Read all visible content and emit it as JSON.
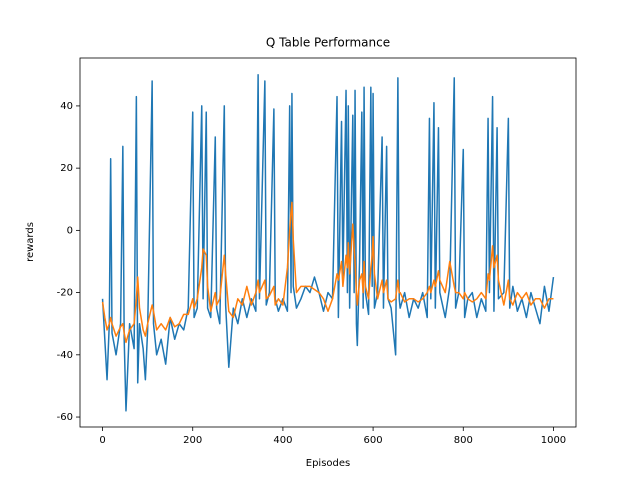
{
  "chart_data": {
    "type": "line",
    "title": "Q Table Performance",
    "x_label": "Episodes",
    "y_label": "rewards",
    "x": [
      0,
      5,
      10,
      15,
      18,
      21,
      30,
      40,
      45,
      48,
      52,
      60,
      70,
      75,
      78,
      82,
      90,
      95,
      100,
      110,
      113,
      120,
      130,
      140,
      150,
      160,
      170,
      180,
      190,
      200,
      203,
      210,
      220,
      223,
      230,
      233,
      240,
      250,
      253,
      260,
      270,
      273,
      280,
      290,
      300,
      310,
      320,
      330,
      340,
      345,
      348,
      360,
      363,
      370,
      380,
      383,
      390,
      400,
      410,
      415,
      418,
      420,
      423,
      430,
      440,
      450,
      460,
      470,
      480,
      490,
      500,
      510,
      520,
      523,
      530,
      533,
      540,
      543,
      545,
      548,
      555,
      558,
      560,
      563,
      565,
      570,
      575,
      578,
      580,
      583,
      590,
      595,
      598,
      600,
      603,
      610,
      620,
      623,
      630,
      633,
      640,
      650,
      655,
      658,
      660,
      670,
      680,
      690,
      700,
      710,
      720,
      725,
      728,
      735,
      738,
      745,
      748,
      760,
      770,
      780,
      783,
      790,
      800,
      803,
      810,
      820,
      830,
      840,
      850,
      855,
      858,
      865,
      868,
      875,
      878,
      890,
      900,
      903,
      910,
      920,
      930,
      940,
      950,
      960,
      970,
      980,
      990,
      1000
    ],
    "series": [
      {
        "color": "#1f77b4",
        "values": [
          -22,
          -35,
          -48,
          -30,
          23,
          -33,
          -40,
          -30,
          27,
          -35,
          -58,
          -30,
          -38,
          43,
          -49,
          -30,
          -38,
          -48,
          -32,
          48,
          -30,
          -40,
          -35,
          -43,
          -28,
          -35,
          -30,
          -32,
          -25,
          38,
          -28,
          -25,
          40,
          -22,
          38,
          -25,
          -28,
          30,
          -25,
          -30,
          40,
          -24,
          -44,
          -25,
          -30,
          -22,
          -28,
          -22,
          -26,
          50,
          -22,
          48,
          -24,
          -20,
          39,
          -22,
          -26,
          -22,
          -26,
          40,
          -20,
          44,
          -18,
          -25,
          -22,
          -18,
          -20,
          -15,
          -20,
          -26,
          -20,
          -22,
          43,
          -28,
          35,
          -15,
          45,
          -20,
          40,
          -25,
          37,
          -20,
          45,
          -30,
          -37,
          -10,
          38,
          -25,
          46,
          -20,
          -27,
          46,
          -18,
          44,
          -25,
          -20,
          30,
          -25,
          27,
          -22,
          -25,
          -40,
          49,
          -22,
          -25,
          -20,
          -28,
          -22,
          -25,
          -20,
          -28,
          36,
          -22,
          41,
          -25,
          33,
          -20,
          -28,
          -18,
          49,
          -25,
          -20,
          26,
          -28,
          -22,
          -20,
          -28,
          -22,
          -26,
          36,
          -20,
          43,
          -26,
          33,
          -22,
          -20,
          36,
          -25,
          -18,
          -26,
          -22,
          -28,
          -20,
          -25,
          -30,
          -18,
          -26,
          -15
        ]
      },
      {
        "color": "#ff7f0e",
        "values": [
          -23,
          -28,
          -32,
          -30,
          -28,
          -30,
          -34,
          -31,
          -30,
          -33,
          -36,
          -32,
          -30,
          -22,
          -15,
          -25,
          -32,
          -34,
          -30,
          -24,
          -26,
          -32,
          -30,
          -32,
          -28,
          -31,
          -30,
          -27,
          -27,
          -22,
          -25,
          -22,
          -12,
          -6,
          -8,
          -18,
          -26,
          -20,
          -24,
          -22,
          -8,
          -14,
          -26,
          -28,
          -22,
          -24,
          -18,
          -24,
          -20,
          -16,
          -20,
          -16,
          -22,
          -21,
          -18,
          -24,
          -22,
          -24,
          -12,
          0,
          6,
          9,
          -3,
          -20,
          -18,
          -18,
          -18,
          -19,
          -20,
          -22,
          -26,
          -22,
          -14,
          -16,
          -10,
          -18,
          -8,
          -12,
          -4,
          -14,
          2,
          -6,
          -10,
          -20,
          -24,
          -16,
          -14,
          -20,
          -10,
          -18,
          -22,
          -12,
          -8,
          -2,
          -14,
          -22,
          -16,
          -20,
          -16,
          -22,
          -23,
          -22,
          -16,
          -20,
          -20,
          -23,
          -22,
          -22,
          -23,
          -22,
          -20,
          -18,
          -20,
          -16,
          -18,
          -13,
          -16,
          -20,
          -10,
          -18,
          -20,
          -20,
          -22,
          -20,
          -22,
          -23,
          -22,
          -20,
          -22,
          -14,
          -16,
          -5,
          -12,
          -8,
          -16,
          -24,
          -16,
          -22,
          -24,
          -20,
          -22,
          -20,
          -24,
          -22,
          -22,
          -25,
          -22,
          -22
        ]
      }
    ],
    "xlim": [
      -50,
      1050
    ],
    "ylim": [
      -63.2,
      55.4
    ],
    "xticks": [
      0,
      200,
      400,
      600,
      800,
      1000
    ],
    "yticks": [
      -60,
      -40,
      -20,
      0,
      20,
      40
    ]
  }
}
